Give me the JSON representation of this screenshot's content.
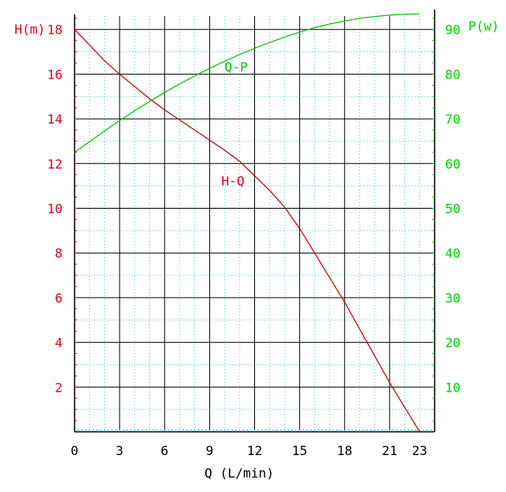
{
  "chart_data": {
    "type": "line",
    "x_axis": {
      "label": "Q (L/min)",
      "ticks": [
        "0",
        "3",
        "6",
        "9",
        "12",
        "15",
        "18",
        "21",
        "23"
      ],
      "range": [
        0,
        24
      ]
    },
    "y_axis_left": {
      "label": "H(m)",
      "ticks": [
        "2",
        "4",
        "6",
        "8",
        "10",
        "12",
        "14",
        "16",
        "18"
      ],
      "range": [
        0,
        18.6
      ],
      "color": "#e8001a"
    },
    "y_axis_right": {
      "label": "P(w)",
      "ticks": [
        "10",
        "20",
        "30",
        "40",
        "50",
        "60",
        "70",
        "80",
        "90"
      ],
      "range": [
        0,
        93
      ],
      "color": "#00d000"
    },
    "grid": true,
    "series": [
      {
        "name": "H-Q",
        "axis": "left",
        "color": "#c00000",
        "x": [
          0,
          1,
          2,
          3,
          4,
          5,
          6,
          7,
          8,
          9,
          10,
          11,
          12,
          13,
          14,
          15,
          16,
          17,
          18,
          19,
          20,
          21,
          22,
          23
        ],
        "values": [
          18.0,
          17.3,
          16.6,
          16.0,
          15.45,
          14.9,
          14.4,
          13.95,
          13.5,
          13.05,
          12.6,
          12.1,
          11.45,
          10.8,
          10.05,
          9.1,
          8.0,
          6.9,
          5.8,
          4.6,
          3.4,
          2.2,
          1.1,
          0.0
        ]
      },
      {
        "name": "Q-P",
        "axis": "right",
        "color": "#00c000",
        "x": [
          0,
          1,
          2,
          3,
          4,
          5,
          6,
          7,
          8,
          9,
          10,
          11,
          12,
          13,
          14,
          15,
          16,
          17,
          18,
          19,
          20,
          21,
          22,
          23
        ],
        "values": [
          62.5,
          64.9,
          67.3,
          69.6,
          71.8,
          73.9,
          75.9,
          77.8,
          79.6,
          81.3,
          82.9,
          84.4,
          85.8,
          87.1,
          88.3,
          89.4,
          90.4,
          91.2,
          91.9,
          92.5,
          92.9,
          93.2,
          93.4,
          93.5
        ]
      }
    ]
  }
}
